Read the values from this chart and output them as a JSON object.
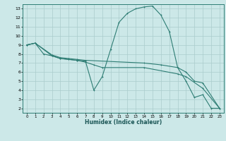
{
  "xlabel": "Humidex (Indice chaleur)",
  "bg_color": "#cce8e8",
  "grid_color": "#aacccc",
  "line_color": "#2e7d74",
  "xlim": [
    -0.5,
    23.5
  ],
  "ylim": [
    1.5,
    13.5
  ],
  "xticks": [
    0,
    1,
    2,
    3,
    4,
    5,
    6,
    7,
    8,
    9,
    10,
    11,
    12,
    13,
    14,
    15,
    16,
    17,
    18,
    19,
    20,
    21,
    22,
    23
  ],
  "yticks": [
    2,
    3,
    4,
    5,
    6,
    7,
    8,
    9,
    10,
    11,
    12,
    13
  ],
  "line1_x": [
    0,
    1,
    2,
    3,
    4,
    5,
    6,
    7,
    8,
    9,
    10,
    11,
    12,
    13,
    14,
    15,
    16,
    17,
    18,
    19,
    20,
    21,
    22,
    23
  ],
  "line1_y": [
    9.0,
    9.2,
    8.0,
    7.8,
    7.5,
    7.4,
    7.3,
    7.2,
    4.0,
    5.5,
    8.5,
    11.5,
    12.5,
    13.0,
    13.2,
    13.3,
    12.3,
    10.5,
    6.5,
    5.0,
    3.2,
    3.5,
    2.0,
    2.0
  ],
  "line2_x": [
    0,
    1,
    3,
    4,
    5,
    6,
    7,
    14,
    16,
    18,
    19,
    20,
    21,
    23
  ],
  "line2_y": [
    9.0,
    9.2,
    7.9,
    7.6,
    7.5,
    7.4,
    7.3,
    7.0,
    6.8,
    6.5,
    6.0,
    5.0,
    4.8,
    2.0
  ],
  "line3_x": [
    0,
    1,
    3,
    4,
    5,
    6,
    7,
    8,
    9,
    14,
    18,
    19,
    21,
    23
  ],
  "line3_y": [
    9.0,
    9.2,
    7.8,
    7.5,
    7.4,
    7.3,
    7.1,
    6.8,
    6.5,
    6.5,
    5.8,
    5.5,
    4.2,
    2.0
  ]
}
